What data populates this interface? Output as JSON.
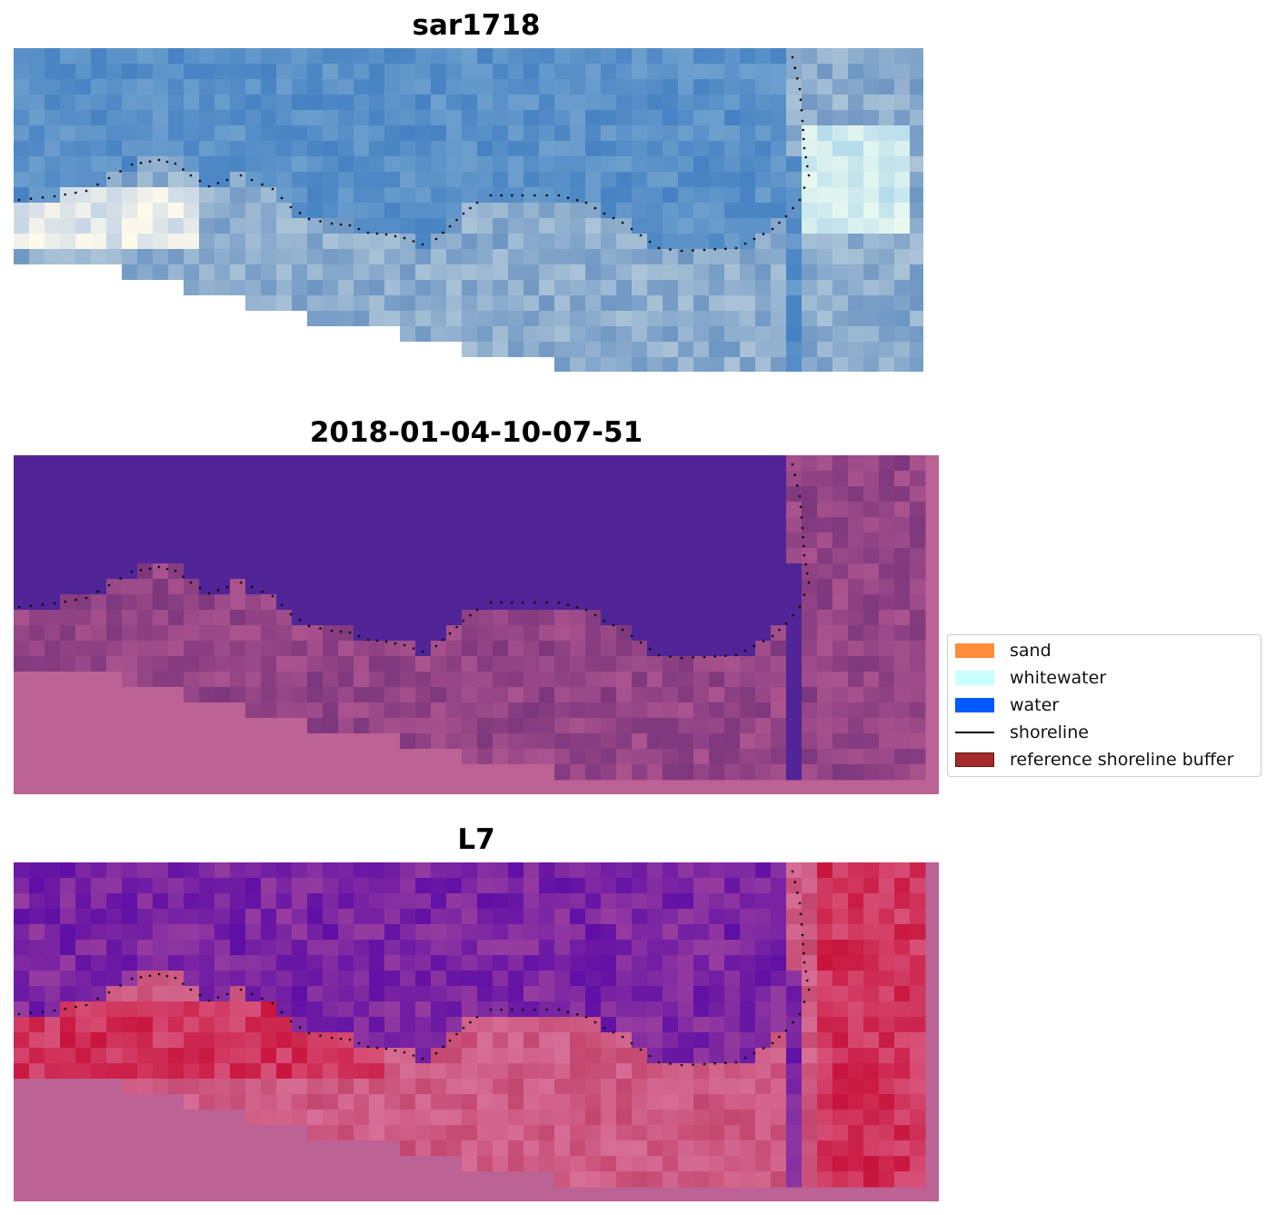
{
  "panels": [
    {
      "title": "sar1718",
      "overlay": "rgb"
    },
    {
      "title": "2018-01-04-10-07-51",
      "overlay": "classification"
    },
    {
      "title": "L7",
      "overlay": "index"
    }
  ],
  "legend": {
    "items": [
      {
        "label": "sand",
        "color": "#ff8c3a",
        "kind": "patch"
      },
      {
        "label": "whitewater",
        "color": "#c8ffff",
        "kind": "patch"
      },
      {
        "label": "water",
        "color": "#005aff",
        "kind": "patch"
      },
      {
        "label": "shoreline",
        "color": "#000000",
        "kind": "line"
      },
      {
        "label": "reference shoreline buffer",
        "color": "#a52a2a",
        "kind": "patch"
      }
    ]
  },
  "colors": {
    "nodata_pink": "#bd6294",
    "water_class": "#512497",
    "rgb_water": "#5b8fc4",
    "index_low": "#6e1aa6",
    "index_high": "#c8183e"
  }
}
